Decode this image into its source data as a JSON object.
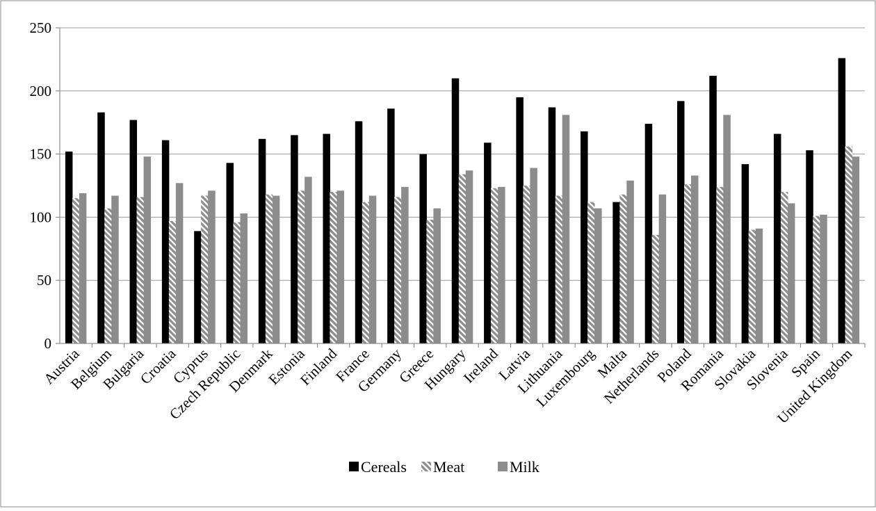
{
  "chart_data": {
    "type": "bar",
    "categories": [
      "Austria",
      "Belgium",
      "Bulgaria",
      "Croatia",
      "Cyprus",
      "Czech Republic",
      "Denmark",
      "Estonia",
      "Finland",
      "France",
      "Germany",
      "Greece",
      "Hungary",
      "Ireland",
      "Latvia",
      "Lithuania",
      "Luxembourg",
      "Malta",
      "Netherlands",
      "Poland",
      "Romania",
      "Slovakia",
      "Slovenia",
      "Spain",
      "United Kingdom"
    ],
    "series": [
      {
        "name": "Cereals",
        "color": "#000000",
        "pattern": "solid",
        "values": [
          152,
          183,
          177,
          161,
          89,
          143,
          162,
          165,
          166,
          176,
          186,
          150,
          210,
          159,
          195,
          187,
          168,
          112,
          174,
          192,
          212,
          142,
          166,
          153,
          226
        ]
      },
      {
        "name": "Meat",
        "color": "#8c8c8c",
        "pattern": "diagonal-stripes",
        "values": [
          115,
          107,
          116,
          97,
          117,
          96,
          118,
          121,
          120,
          112,
          116,
          98,
          134,
          123,
          125,
          117,
          112,
          118,
          86,
          126,
          124,
          90,
          120,
          101,
          156
        ]
      },
      {
        "name": "Milk",
        "color": "#8c8c8c",
        "pattern": "solid",
        "values": [
          119,
          117,
          148,
          127,
          121,
          103,
          117,
          132,
          121,
          117,
          124,
          107,
          137,
          124,
          139,
          181,
          107,
          129,
          118,
          133,
          181,
          91,
          111,
          102,
          148
        ]
      }
    ],
    "yticks": [
      0,
      50,
      100,
      150,
      200,
      250
    ],
    "ylim": [
      0,
      250
    ],
    "title": "",
    "xlabel": "",
    "ylabel": "",
    "grid": true,
    "legend_position": "bottom"
  }
}
